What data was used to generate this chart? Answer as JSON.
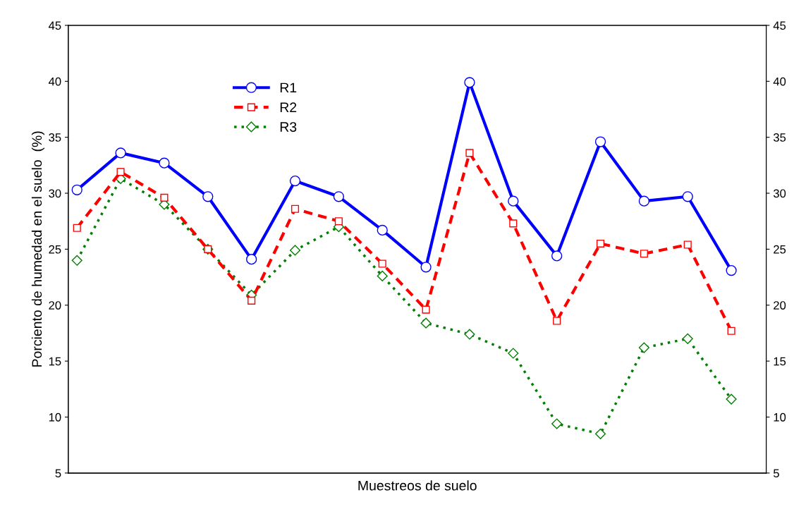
{
  "chart_data": {
    "type": "line",
    "xlabel": "Muestreos de suelo",
    "ylabel": "Porciento de humedad en el suelo  (%)",
    "categories": [
      null,
      null,
      null,
      null,
      null,
      null,
      null,
      null,
      null,
      null,
      null,
      null,
      null,
      null,
      null,
      null
    ],
    "series": [
      {
        "name": "R1",
        "color": "#0000ff",
        "marker": "circle",
        "line_style": "solid",
        "values": [
          30.3,
          33.6,
          32.7,
          29.7,
          24.1,
          31.1,
          29.7,
          26.7,
          23.4,
          39.9,
          29.3,
          24.4,
          34.6,
          29.3,
          29.7,
          23.1
        ]
      },
      {
        "name": "R2",
        "color": "#ff0000",
        "marker": "square",
        "line_style": "dashed",
        "values": [
          26.9,
          31.9,
          29.6,
          25.0,
          20.4,
          28.6,
          27.5,
          23.7,
          19.6,
          33.6,
          27.3,
          18.6,
          25.5,
          24.6,
          25.4,
          17.7
        ]
      },
      {
        "name": "R3",
        "color": "#008000",
        "marker": "diamond",
        "line_style": "dotted",
        "values": [
          24.0,
          31.3,
          29.0,
          25.0,
          20.9,
          24.9,
          27.0,
          22.6,
          18.4,
          17.4,
          15.7,
          9.4,
          8.5,
          16.2,
          17.0,
          11.6
        ]
      }
    ],
    "ylim": [
      5,
      45
    ],
    "yticks": [
      5,
      10,
      15,
      20,
      25,
      30,
      35,
      40,
      45
    ],
    "y2lim": [
      5,
      45
    ],
    "y2ticks": [
      5,
      10,
      15,
      20,
      25,
      30,
      35,
      40,
      45
    ],
    "grid": false,
    "legend": "top left"
  }
}
